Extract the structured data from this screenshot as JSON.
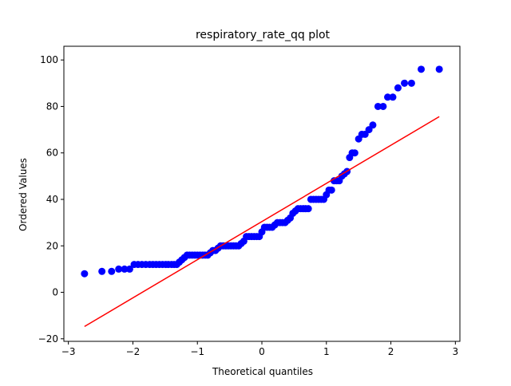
{
  "chart_data": {
    "type": "scatter",
    "title": "respiratory_rate_qq plot",
    "x_label": "Theoretical quantiles",
    "y_label": "Ordered Values",
    "xlim": [
      -3.07,
      3.07
    ],
    "ylim": [
      -21.1,
      105.9
    ],
    "xticks": [
      {
        "value": -3,
        "label": "−3"
      },
      {
        "value": -2,
        "label": "−2"
      },
      {
        "value": -1,
        "label": "−1"
      },
      0,
      1,
      2,
      3
    ],
    "yticks": [
      {
        "value": -20,
        "label": "−20"
      },
      0,
      20,
      40,
      60,
      80,
      100
    ],
    "series": [
      {
        "type": "scatter",
        "color": "#0000ff",
        "x": [
          -2.75,
          -2.48,
          -2.33,
          -2.22,
          -2.13,
          -2.05,
          -1.98,
          -1.92,
          -1.86,
          -1.8,
          -1.74,
          -1.69,
          -1.64,
          -1.59,
          -1.54,
          -1.49,
          -1.45,
          -1.4,
          -1.36,
          -1.32,
          -1.28,
          -1.24,
          -1.2,
          -1.16,
          -1.12,
          -1.08,
          -1.04,
          -1.0,
          -0.96,
          -0.92,
          -0.88,
          -0.84,
          -0.8,
          -0.76,
          -0.72,
          -0.68,
          -0.64,
          -0.6,
          -0.56,
          -0.52,
          -0.48,
          -0.44,
          -0.4,
          -0.36,
          -0.32,
          -0.28,
          -0.24,
          -0.2,
          -0.16,
          -0.12,
          -0.08,
          -0.04,
          0.0,
          0.04,
          0.08,
          0.12,
          0.16,
          0.2,
          0.24,
          0.28,
          0.32,
          0.36,
          0.4,
          0.44,
          0.48,
          0.52,
          0.56,
          0.6,
          0.64,
          0.68,
          0.72,
          0.76,
          0.8,
          0.84,
          0.88,
          0.92,
          0.96,
          1.0,
          1.04,
          1.08,
          1.12,
          1.16,
          1.2,
          1.24,
          1.28,
          1.32,
          1.36,
          1.4,
          1.44,
          1.5,
          1.55,
          1.6,
          1.66,
          1.72,
          1.8,
          1.88,
          1.95,
          2.03,
          2.11,
          2.21,
          2.32,
          2.47,
          2.75
        ],
        "values": [
          8,
          9,
          9,
          10,
          10,
          10,
          12,
          12,
          12,
          12,
          12,
          12,
          12,
          12,
          12,
          12,
          12,
          12,
          12,
          12,
          13,
          14,
          15,
          16,
          16,
          16,
          16,
          16,
          16,
          16,
          16,
          16,
          17,
          18,
          18,
          19,
          20,
          20,
          20,
          20,
          20,
          20,
          20,
          20,
          21,
          22,
          24,
          24,
          24,
          24,
          24,
          24,
          26,
          28,
          28,
          28,
          28,
          29,
          30,
          30,
          30,
          30,
          31,
          32,
          34,
          35,
          36,
          36,
          36,
          36,
          36,
          40,
          40,
          40,
          40,
          40,
          40,
          42,
          44,
          44,
          48,
          48,
          48,
          50,
          51,
          52,
          58,
          60,
          60,
          66,
          68,
          68,
          70,
          72,
          80,
          80,
          84,
          84,
          88,
          90,
          90,
          96,
          96
        ]
      },
      {
        "type": "line",
        "color": "#ff0000",
        "x": [
          -2.75,
          2.75
        ],
        "values": [
          -14.7,
          75.6
        ]
      }
    ]
  }
}
